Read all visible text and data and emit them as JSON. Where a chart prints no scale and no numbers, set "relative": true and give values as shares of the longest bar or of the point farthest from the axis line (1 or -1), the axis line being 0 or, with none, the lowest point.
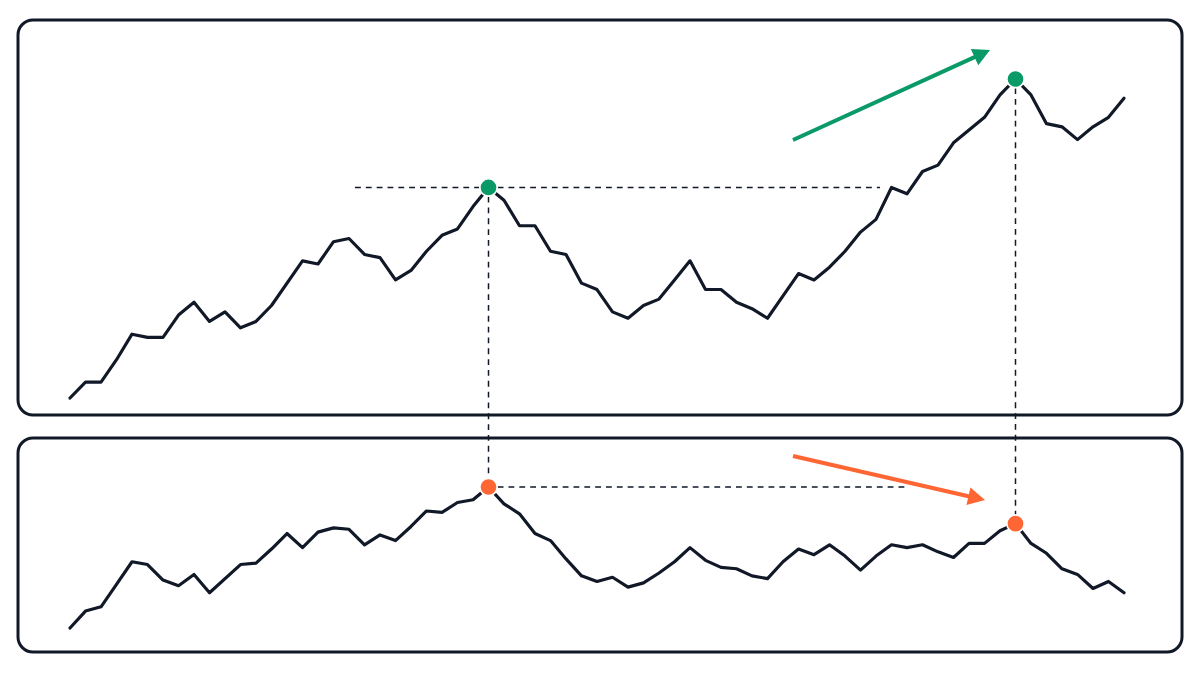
{
  "chart_data": [
    {
      "type": "line",
      "relative": true,
      "categories": [
        null,
        null,
        null,
        null,
        null,
        null,
        null,
        null,
        null,
        null,
        null,
        null,
        null,
        null,
        null,
        null,
        null,
        null,
        null,
        null,
        null,
        null,
        null,
        null,
        null,
        null,
        null,
        null,
        null,
        null,
        null,
        null,
        null,
        null,
        null,
        null,
        null,
        null,
        null,
        null,
        null,
        null,
        null,
        null,
        null,
        null,
        null,
        null,
        null,
        null,
        null,
        null,
        null,
        null,
        null,
        null,
        null,
        null,
        null,
        null,
        null,
        null,
        null,
        null,
        null,
        null,
        null,
        null,
        null
      ],
      "series": [
        {
          "type": "line",
          "color": "#111827",
          "values": [
            0,
            0.05,
            0.05,
            0.12,
            0.2,
            0.19,
            0.19,
            0.26,
            0.3,
            0.24,
            0.27,
            0.22,
            0.24,
            0.29,
            0.36,
            0.43,
            0.42,
            0.49,
            0.5,
            0.45,
            0.44,
            0.37,
            0.4,
            0.46,
            0.51,
            0.53,
            0.6,
            0.66,
            0.62,
            0.54,
            0.54,
            0.46,
            0.45,
            0.36,
            0.34,
            0.27,
            0.25,
            0.29,
            0.31,
            0.37,
            0.43,
            0.34,
            0.34,
            0.3,
            0.28,
            0.25,
            0.32,
            0.39,
            0.37,
            0.41,
            0.46,
            0.52,
            0.56,
            0.66,
            0.64,
            0.71,
            0.73,
            0.8,
            0.84,
            0.88,
            0.95,
            1,
            0.95,
            0.86,
            0.85,
            0.81,
            0.85,
            0.88,
            0.94
          ]
        }
      ]
    },
    {
      "type": "line",
      "relative": true,
      "categories": [
        null,
        null,
        null,
        null,
        null,
        null,
        null,
        null,
        null,
        null,
        null,
        null,
        null,
        null,
        null,
        null,
        null,
        null,
        null,
        null,
        null,
        null,
        null,
        null,
        null,
        null,
        null,
        null,
        null,
        null,
        null,
        null,
        null,
        null,
        null,
        null,
        null,
        null,
        null,
        null,
        null,
        null,
        null,
        null,
        null,
        null,
        null,
        null,
        null,
        null,
        null,
        null,
        null,
        null,
        null,
        null,
        null,
        null,
        null,
        null,
        null,
        null,
        null,
        null,
        null,
        null,
        null,
        null,
        null
      ],
      "series": [
        {
          "type": "line",
          "color": "#111827",
          "values": [
            0,
            0.12,
            0.15,
            0.31,
            0.47,
            0.45,
            0.34,
            0.3,
            0.38,
            0.25,
            0.35,
            0.45,
            0.46,
            0.56,
            0.67,
            0.57,
            0.68,
            0.71,
            0.7,
            0.59,
            0.66,
            0.62,
            0.72,
            0.83,
            0.82,
            0.89,
            0.91,
            1,
            0.88,
            0.81,
            0.67,
            0.62,
            0.49,
            0.37,
            0.33,
            0.36,
            0.29,
            0.32,
            0.39,
            0.47,
            0.57,
            0.48,
            0.43,
            0.42,
            0.37,
            0.35,
            0.47,
            0.56,
            0.52,
            0.59,
            0.51,
            0.41,
            0.51,
            0.59,
            0.57,
            0.59,
            0.54,
            0.5,
            0.6,
            0.6,
            0.69,
            0.74,
            0.6,
            0.53,
            0.42,
            0.38,
            0.28,
            0.33,
            0.25
          ]
        }
      ]
    }
  ]
}
